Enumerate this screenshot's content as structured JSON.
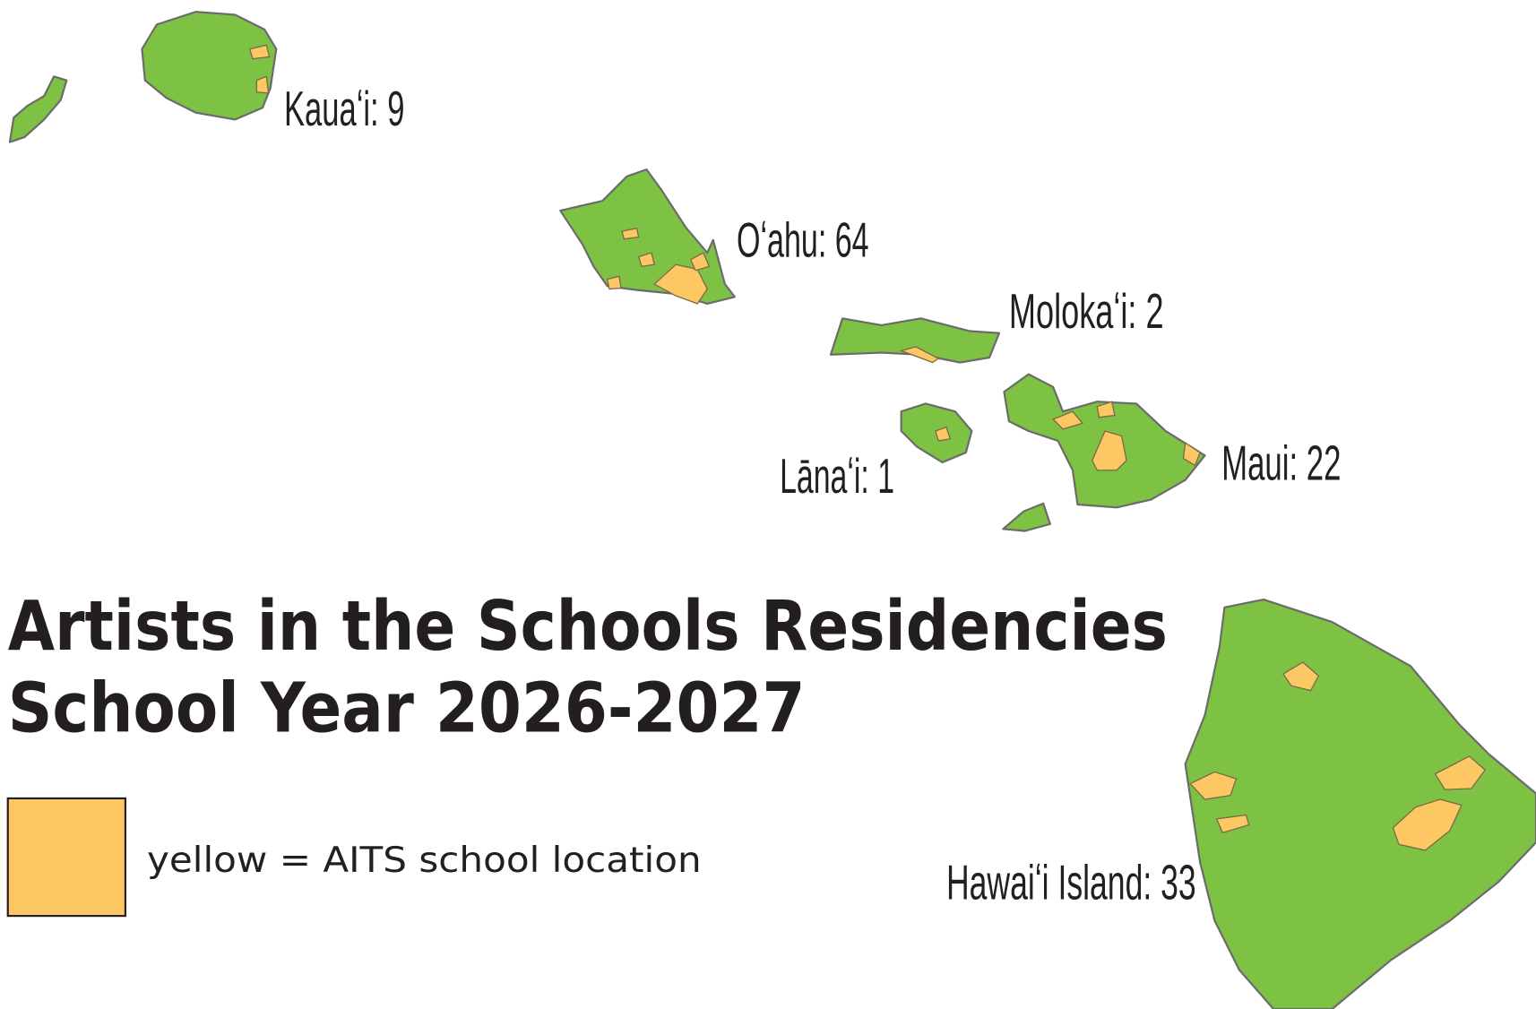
{
  "title": {
    "line1": "Artists in the Schools Residencies",
    "line2": "School Year 2026-2027"
  },
  "legend": {
    "text": "yellow = AITS school location"
  },
  "islands": [
    {
      "label": "Kauaʻi: 9"
    },
    {
      "label": "Oʻahu: 64"
    },
    {
      "label": "Molokaʻi: 2"
    },
    {
      "label": "Lānaʻi: 1"
    },
    {
      "label": "Maui: 22"
    },
    {
      "label": "Hawaiʻi Island: 33"
    }
  ]
}
